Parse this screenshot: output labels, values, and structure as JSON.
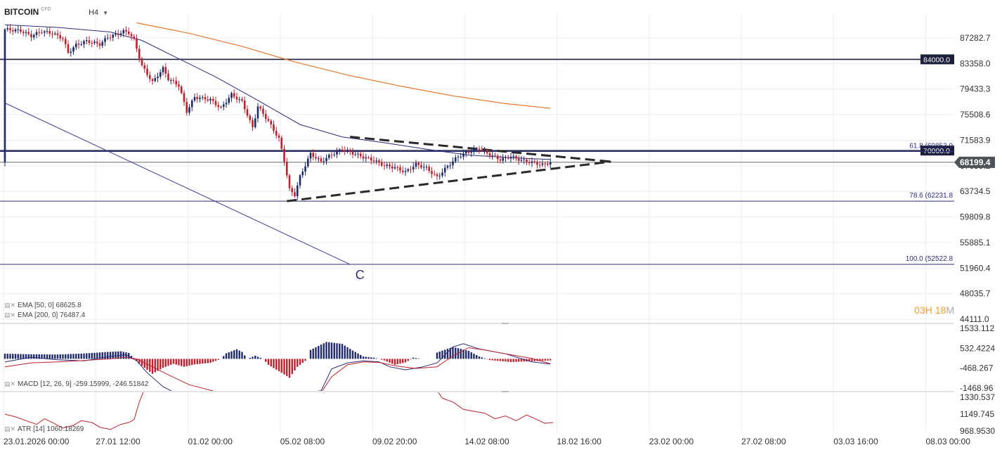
{
  "header": {
    "symbol": "BITCOIN",
    "badge": "CFD",
    "timeframe": "H4"
  },
  "timer": {
    "hours": "03",
    "h_unit": "H",
    "minutes": "18",
    "m_unit": "M"
  },
  "colors": {
    "bull": "#1f2a6b",
    "bear": "#c0202c",
    "ema50": "#2a2a7a",
    "ema200": "#e8782a",
    "macd_line": "#2a2a7a",
    "signal_line": "#c0202c"
  },
  "legends": {
    "ema50": "EMA [50, 0] 68625.8",
    "ema200": "EMA [200, 0] 76487.4",
    "macd": "MACD [12, 26, 9] -259.15999, -246.51842",
    "atr": "ATR [14] 1060.18269"
  },
  "chart_data": [
    {
      "type": "candlestick",
      "panel": "price",
      "y_ticks": [
        "87282.7",
        "83358.0",
        "79433.3",
        "75508.6",
        "71583.9",
        "67659.2",
        "63734.5",
        "59809.8",
        "55885.1",
        "51960.4",
        "48035.7",
        "44111.0"
      ],
      "ylim": [
        44111.0,
        87282.7
      ],
      "last_price": "68199.4",
      "last_price_value": 68199.4,
      "ohlc_path": [
        [
          0,
          88600
        ],
        [
          6,
          88400
        ],
        [
          10,
          87600
        ],
        [
          14,
          88300
        ],
        [
          18,
          88000
        ],
        [
          22,
          87200
        ],
        [
          24,
          85000
        ],
        [
          27,
          86200
        ],
        [
          31,
          86800
        ],
        [
          36,
          86300
        ],
        [
          39,
          87400
        ],
        [
          43,
          87900
        ],
        [
          45,
          88300
        ],
        [
          47,
          88100
        ],
        [
          49,
          87000
        ],
        [
          52,
          83000
        ],
        [
          56,
          80500
        ],
        [
          60,
          82600
        ],
        [
          62,
          81000
        ],
        [
          66,
          80000
        ],
        [
          69,
          76000
        ],
        [
          72,
          78200
        ],
        [
          78,
          77800
        ],
        [
          82,
          76500
        ],
        [
          86,
          78600
        ],
        [
          90,
          77500
        ],
        [
          94,
          73500
        ],
        [
          96,
          76800
        ],
        [
          100,
          74500
        ],
        [
          104,
          71800
        ],
        [
          106,
          68500
        ],
        [
          108,
          64000
        ],
        [
          110,
          63200
        ],
        [
          112,
          66000
        ],
        [
          116,
          69500
        ],
        [
          120,
          68300
        ],
        [
          124,
          69400
        ],
        [
          128,
          70200
        ],
        [
          132,
          69600
        ],
        [
          136,
          69000
        ],
        [
          140,
          68500
        ],
        [
          144,
          67700
        ],
        [
          148,
          67400
        ],
        [
          152,
          66700
        ],
        [
          156,
          67900
        ],
        [
          160,
          67300
        ],
        [
          164,
          65900
        ],
        [
          168,
          67600
        ],
        [
          172,
          69100
        ],
        [
          176,
          69800
        ],
        [
          180,
          70300
        ],
        [
          184,
          69400
        ],
        [
          188,
          68600
        ],
        [
          192,
          69100
        ],
        [
          196,
          68500
        ],
        [
          200,
          68200
        ],
        [
          204,
          67800
        ],
        [
          207,
          68200
        ]
      ],
      "horizontal_lines": [
        {
          "price": 84000.0,
          "label": "84000.0",
          "style": "dark"
        },
        {
          "price": 70000.0,
          "label": "70000.0",
          "style": "dark"
        },
        {
          "price": 68199.4,
          "style": "current"
        }
      ],
      "fibonacci": [
        {
          "price": 69853.9,
          "label": "61.8 (69853.9"
        },
        {
          "price": 62231.8,
          "label": "78.6 (62231.8"
        },
        {
          "price": 52522.8,
          "label": "100.0 (52522.8"
        }
      ],
      "trendlines": [
        {
          "style": "solid",
          "points": [
            [
              0,
              77300
            ],
            [
              131,
              52522.8
            ]
          ]
        },
        {
          "style": "dashed",
          "points": [
            [
              131,
              72100
            ],
            [
              230,
              68300
            ]
          ]
        },
        {
          "style": "dashed",
          "points": [
            [
              107,
              62231.8
            ],
            [
              230,
              68300
            ]
          ]
        }
      ],
      "annotation": {
        "text": "C",
        "bar": 133,
        "price": 50900
      },
      "ema50": [
        [
          0,
          89300
        ],
        [
          20,
          88900
        ],
        [
          40,
          88200
        ],
        [
          52,
          86900
        ],
        [
          64,
          84500
        ],
        [
          80,
          81300
        ],
        [
          96,
          77700
        ],
        [
          112,
          74000
        ],
        [
          128,
          72100
        ],
        [
          144,
          71200
        ],
        [
          160,
          70200
        ],
        [
          176,
          69300
        ],
        [
          192,
          68900
        ],
        [
          207,
          68625.8
        ]
      ],
      "ema200": [
        [
          50,
          89600
        ],
        [
          70,
          88000
        ],
        [
          90,
          86000
        ],
        [
          110,
          83600
        ],
        [
          130,
          81600
        ],
        [
          150,
          79900
        ],
        [
          170,
          78400
        ],
        [
          190,
          77200
        ],
        [
          207,
          76487.4
        ]
      ],
      "x_ticks": [
        {
          "bar": 0,
          "label": "23.01.2026  00:00"
        },
        {
          "bar": 35,
          "label": "27.01  12:00"
        },
        {
          "bar": 70,
          "label": "01.02  00:00"
        },
        {
          "bar": 105,
          "label": "05.02  08:00"
        },
        {
          "bar": 140,
          "label": "09.02  20:00"
        },
        {
          "bar": 175,
          "label": "14.02  08:00"
        },
        {
          "bar": 210,
          "label": "18.02  16:00"
        },
        {
          "bar": 245,
          "label": "23.02  00:00"
        },
        {
          "bar": 280,
          "label": "27.02  08:00"
        },
        {
          "bar": 315,
          "label": "03.03  16:00"
        },
        {
          "bar": 350,
          "label": "08.03  00:00"
        }
      ]
    },
    {
      "type": "bar",
      "panel": "macd",
      "y_ticks": [
        "1533.112",
        "532.4224",
        "-468.267",
        "-1468.96"
      ],
      "ylim": [
        -1468.96,
        1533.112
      ],
      "histogram": [
        [
          0,
          260
        ],
        [
          10,
          230
        ],
        [
          20,
          220
        ],
        [
          30,
          270
        ],
        [
          38,
          340
        ],
        [
          44,
          380
        ],
        [
          47,
          300
        ],
        [
          49,
          0
        ],
        [
          52,
          -350
        ],
        [
          56,
          -750
        ],
        [
          60,
          -450
        ],
        [
          64,
          -250
        ],
        [
          68,
          -400
        ],
        [
          72,
          -280
        ],
        [
          78,
          -200
        ],
        [
          82,
          0
        ],
        [
          84,
          280
        ],
        [
          88,
          480
        ],
        [
          90,
          350
        ],
        [
          92,
          0
        ],
        [
          95,
          160
        ],
        [
          98,
          0
        ],
        [
          100,
          -300
        ],
        [
          105,
          -700
        ],
        [
          108,
          -950
        ],
        [
          111,
          -400
        ],
        [
          115,
          0
        ],
        [
          116,
          450
        ],
        [
          122,
          850
        ],
        [
          128,
          750
        ],
        [
          132,
          420
        ],
        [
          136,
          120
        ],
        [
          140,
          60
        ],
        [
          144,
          -80
        ],
        [
          148,
          -300
        ],
        [
          152,
          -180
        ],
        [
          155,
          60
        ],
        [
          158,
          0
        ],
        [
          163,
          0
        ],
        [
          164,
          320
        ],
        [
          170,
          600
        ],
        [
          176,
          400
        ],
        [
          180,
          120
        ],
        [
          184,
          -60
        ],
        [
          192,
          -160
        ],
        [
          200,
          -120
        ],
        [
          207,
          -80
        ]
      ],
      "macd_line": [
        [
          0,
          -150
        ],
        [
          10,
          80
        ],
        [
          20,
          -50
        ],
        [
          30,
          -100
        ],
        [
          40,
          120
        ],
        [
          46,
          200
        ],
        [
          50,
          -100
        ],
        [
          54,
          -700
        ],
        [
          60,
          -1400
        ],
        [
          66,
          -1800
        ],
        [
          72,
          -2000
        ],
        [
          90,
          -2200
        ],
        [
          120,
          -1600
        ],
        [
          124,
          -500
        ],
        [
          130,
          -200
        ],
        [
          136,
          -100
        ],
        [
          142,
          -150
        ],
        [
          146,
          -400
        ],
        [
          152,
          -550
        ],
        [
          158,
          -420
        ],
        [
          164,
          -200
        ],
        [
          170,
          600
        ],
        [
          174,
          760
        ],
        [
          180,
          500
        ],
        [
          190,
          250
        ],
        [
          200,
          -150
        ],
        [
          207,
          -259.16
        ]
      ],
      "signal_line": [
        [
          0,
          -400
        ],
        [
          10,
          -200
        ],
        [
          20,
          -150
        ],
        [
          30,
          -80
        ],
        [
          40,
          0
        ],
        [
          46,
          80
        ],
        [
          50,
          0
        ],
        [
          56,
          -400
        ],
        [
          62,
          -800
        ],
        [
          70,
          -1300
        ],
        [
          90,
          -2000
        ],
        [
          120,
          -1700
        ],
        [
          124,
          -900
        ],
        [
          130,
          -300
        ],
        [
          136,
          -150
        ],
        [
          142,
          -180
        ],
        [
          148,
          -350
        ],
        [
          156,
          -480
        ],
        [
          164,
          -400
        ],
        [
          170,
          150
        ],
        [
          176,
          560
        ],
        [
          182,
          450
        ],
        [
          190,
          250
        ],
        [
          200,
          20
        ],
        [
          207,
          -246.52
        ]
      ]
    },
    {
      "type": "line",
      "panel": "atr",
      "y_ticks": [
        "1330.537",
        "1149.745",
        "968.9530"
      ],
      "ylim": [
        968.953,
        1330.537
      ],
      "atr_line": [
        [
          0,
          1150
        ],
        [
          4,
          1120
        ],
        [
          8,
          1080
        ],
        [
          12,
          1040
        ],
        [
          15,
          1100
        ],
        [
          18,
          1060
        ],
        [
          22,
          1000
        ],
        [
          26,
          1030
        ],
        [
          29,
          1080
        ],
        [
          33,
          1060
        ],
        [
          36,
          1010
        ],
        [
          40,
          985
        ],
        [
          44,
          1040
        ],
        [
          47,
          1060
        ],
        [
          49,
          1090
        ],
        [
          51,
          1280
        ],
        [
          53,
          1420
        ],
        [
          164,
          1400
        ],
        [
          166,
          1320
        ],
        [
          170,
          1280
        ],
        [
          174,
          1200
        ],
        [
          178,
          1180
        ],
        [
          182,
          1160
        ],
        [
          186,
          1100
        ],
        [
          190,
          1130
        ],
        [
          194,
          1080
        ],
        [
          198,
          1140
        ],
        [
          202,
          1090
        ],
        [
          205,
          1050
        ],
        [
          208,
          1060.18
        ]
      ]
    }
  ]
}
